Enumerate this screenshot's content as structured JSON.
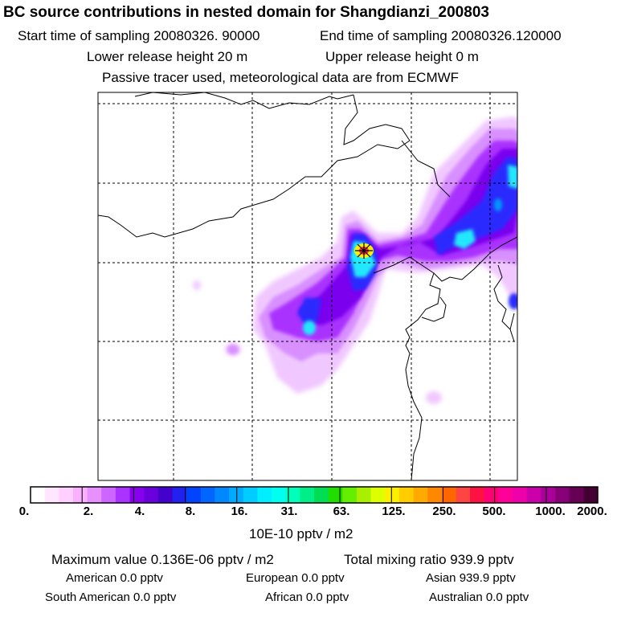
{
  "header": {
    "title": "BC  source contributions in nested domain for Shangdianzi_200803",
    "start_label": "Start time of sampling 20080326. 90000",
    "end_label": "End time of sampling 20080326.120000",
    "lower_label": "Lower release height   20 m",
    "upper_label": "Upper release height    0 m",
    "note": "Passive tracer used, meteorological data are from ECMWF"
  },
  "colorbar": {
    "labels": [
      "0.",
      "2.",
      "4.",
      "8.",
      "16.",
      "31.",
      "63.",
      "125.",
      "250.",
      "500.",
      "1000.",
      "2000."
    ],
    "unit": "10E-10 pptv / m2",
    "colors": [
      "#ffffff",
      "#ffe8ff",
      "#ffd0ff",
      "#f8b0ff",
      "#e890ff",
      "#cc66ff",
      "#aa33ff",
      "#8800ee",
      "#6a00dd",
      "#4400cc",
      "#2222ee",
      "#0044ff",
      "#0066ff",
      "#0088ff",
      "#00aaff",
      "#00ccff",
      "#00eeff",
      "#00ffee",
      "#00ffbb",
      "#00ee88",
      "#00dd55",
      "#22dd00",
      "#66ee00",
      "#aaee00",
      "#ddff00",
      "#ffee00",
      "#ffcc00",
      "#ffaa00",
      "#ff8800",
      "#ff6600",
      "#ff4444",
      "#ff1144",
      "#ff0077",
      "#ff0099",
      "#ee00aa",
      "#cc00aa",
      "#aa0099",
      "#880077",
      "#660055",
      "#440033"
    ]
  },
  "stats": {
    "maximum": "Maximum value  0.136E-06 pptv / m2",
    "total": "Total mixing ratio      939.9 pptv",
    "american": "American        0.0 pptv",
    "european": "European      0.0 pptv",
    "asian": "Asian     939.9 pptv",
    "south_american": "South American        0.0 pptv",
    "african": "African       0.0 pptv",
    "australian": "Australian        0.0 pptv"
  },
  "map": {
    "receptor": "Shangdianzi",
    "plume_colors": {
      "pale": "#f0c8ff",
      "light": "#d890ff",
      "mid": "#aa33ff",
      "violet": "#7a00ee",
      "blue": "#2b2bff",
      "sky": "#0099ff",
      "cyan": "#22e8ff",
      "hot": "#ff2255",
      "yellow": "#ffee00"
    }
  }
}
